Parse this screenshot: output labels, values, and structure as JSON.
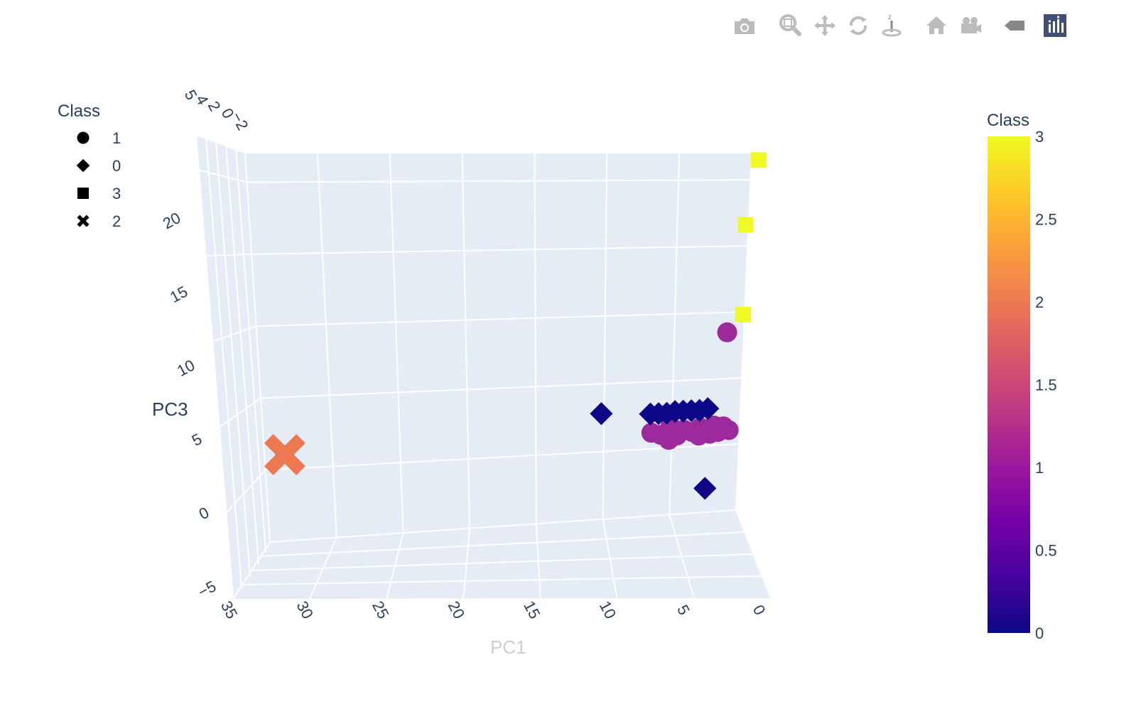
{
  "modebar": {
    "buttons": [
      {
        "name": "camera-icon",
        "title": "Download plot as a png"
      },
      {
        "name": "zoom-icon",
        "title": "Zoom"
      },
      {
        "name": "pan-icon",
        "title": "Pan"
      },
      {
        "name": "orbit-rotation-icon",
        "title": "Orbital rotation"
      },
      {
        "name": "turntable-rotation-icon",
        "title": "Turntable rotation"
      },
      {
        "name": "home-icon",
        "title": "Reset camera to default"
      },
      {
        "name": "camera-last-save-icon",
        "title": "Reset camera to last save"
      },
      {
        "name": "hover-label-icon",
        "title": "Toggle show closest data on hover"
      },
      {
        "name": "plotly-logo-icon",
        "title": "Produced with Plotly"
      }
    ]
  },
  "chart_data": {
    "type": "scatter3d",
    "title": "",
    "axes": {
      "x": {
        "label": "PC1",
        "range": [
          0,
          35
        ],
        "ticks": [
          "35",
          "30",
          "25",
          "20",
          "15",
          "10",
          "5",
          "0"
        ]
      },
      "y": {
        "label": "",
        "ticks": [
          "5",
          "4",
          "2",
          "0",
          "−2"
        ]
      },
      "z": {
        "label": "PC3",
        "range": [
          -5,
          22
        ],
        "ticks": [
          "−5",
          "0",
          "5",
          "10",
          "15",
          "20"
        ]
      }
    },
    "legend": {
      "title": "Class",
      "placement": "top-left",
      "entries": [
        {
          "label": "1",
          "symbol": "circle"
        },
        {
          "label": "0",
          "symbol": "diamond"
        },
        {
          "label": "3",
          "symbol": "square"
        },
        {
          "label": "2",
          "symbol": "x"
        }
      ]
    },
    "colorbar": {
      "title": "Class",
      "range": [
        0,
        3
      ],
      "ticks": [
        "3",
        "2.5",
        "2",
        "1.5",
        "1",
        "0.5",
        "0"
      ],
      "colors": [
        "#0d0887",
        "#46039f",
        "#7201a8",
        "#9c179e",
        "#bd3786",
        "#d8576b",
        "#ed7953",
        "#fb9f3a",
        "#fdca26",
        "#f0f921"
      ]
    },
    "series": [
      {
        "name": "1",
        "symbol": "circle",
        "color": "#9c2a9c",
        "points": [
          {
            "x": 1.2,
            "z": 8.5
          },
          {
            "x": 6.5,
            "z": 1.2
          },
          {
            "x": 5.8,
            "z": 1.0
          },
          {
            "x": 5.1,
            "z": 1.6
          },
          {
            "x": 4.6,
            "z": 0.9
          },
          {
            "x": 5.2,
            "z": 0.6
          },
          {
            "x": 4.1,
            "z": 1.3
          },
          {
            "x": 3.5,
            "z": 1.1
          },
          {
            "x": 2.9,
            "z": 1.4
          },
          {
            "x": 2.5,
            "z": 1.0
          },
          {
            "x": 2.0,
            "z": 1.2
          },
          {
            "x": 1.6,
            "z": 1.0
          },
          {
            "x": 1.2,
            "z": 1.4
          },
          {
            "x": 0.8,
            "z": 1.1
          },
          {
            "x": 3.0,
            "z": 0.8
          },
          {
            "x": 2.2,
            "z": 0.9
          },
          {
            "x": 1.9,
            "z": 1.5
          }
        ]
      },
      {
        "name": "0",
        "symbol": "diamond",
        "color": "#0d0887",
        "points": [
          {
            "x": 10.2,
            "z": 2.8
          },
          {
            "x": 6.6,
            "z": 2.6
          },
          {
            "x": 6.0,
            "z": 2.6
          },
          {
            "x": 5.4,
            "z": 2.6
          },
          {
            "x": 4.8,
            "z": 2.7
          },
          {
            "x": 4.2,
            "z": 2.7
          },
          {
            "x": 3.6,
            "z": 2.7
          },
          {
            "x": 3.0,
            "z": 2.7
          },
          {
            "x": 2.4,
            "z": 2.8
          },
          {
            "x": 2.4,
            "z": -3.2
          }
        ]
      },
      {
        "name": "3",
        "symbol": "square",
        "color": "#f0f921",
        "points": [
          {
            "x": -0.5,
            "z": 21.5
          },
          {
            "x": 0.2,
            "z": 16.6
          },
          {
            "x": 0.1,
            "z": 9.8
          }
        ]
      },
      {
        "name": "2",
        "symbol": "x",
        "color": "#ed7953",
        "points": [
          {
            "x": 33.5,
            "z": 1.0
          }
        ]
      }
    ]
  }
}
